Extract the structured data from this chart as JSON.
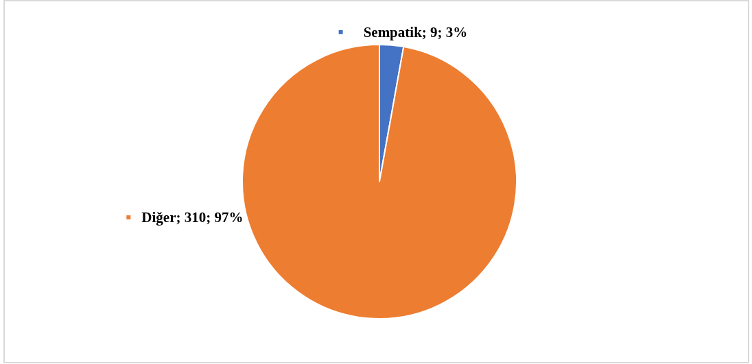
{
  "chart_data": {
    "type": "pie",
    "categories": [
      "Sempatik",
      "Diğer"
    ],
    "values": [
      9,
      310
    ],
    "colors": [
      "#4472c4",
      "#ed7d31"
    ],
    "value_labels": [
      "9; 3%",
      "310; 97%"
    ],
    "legend": "top left"
  }
}
